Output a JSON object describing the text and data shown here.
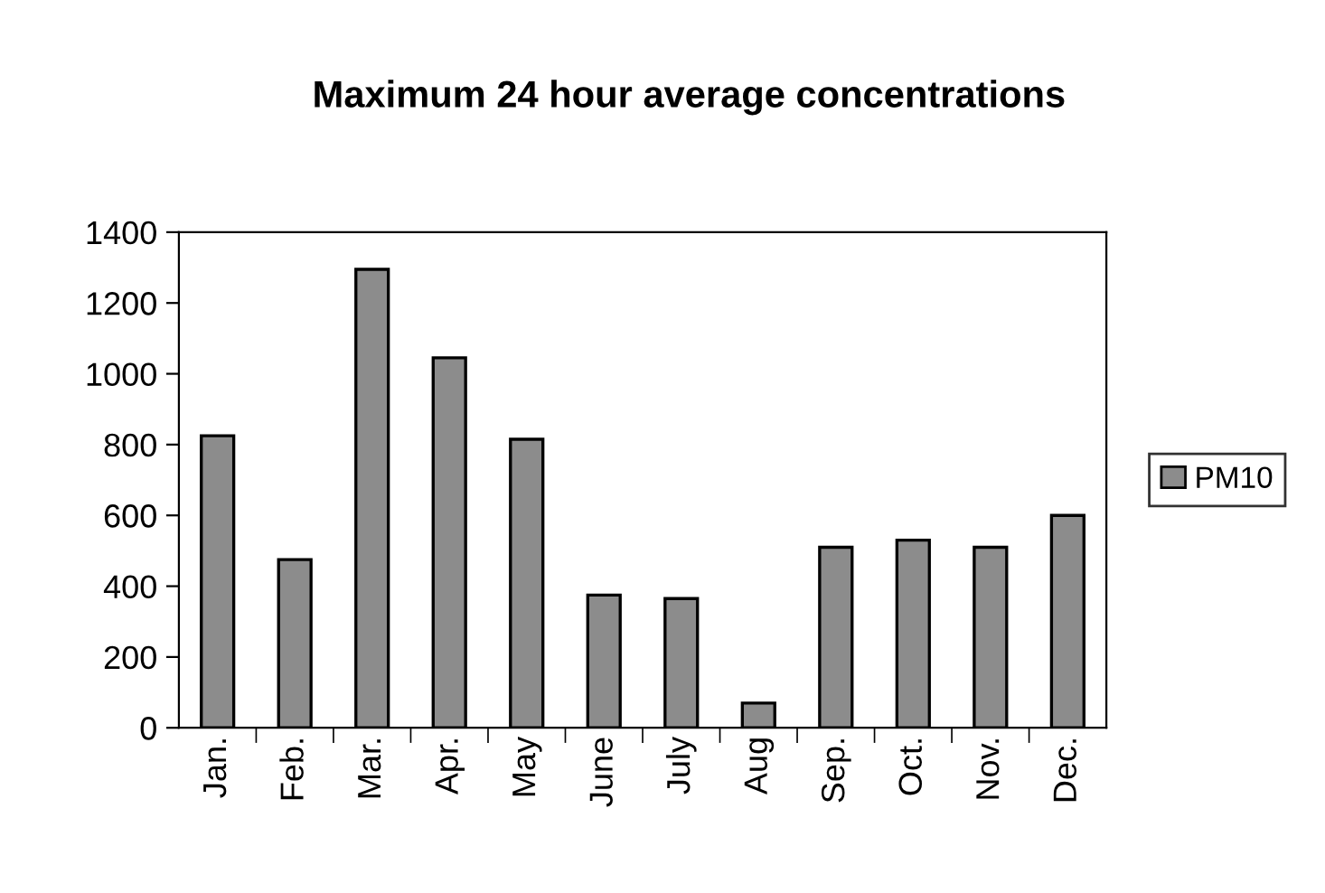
{
  "chart_data": {
    "type": "bar",
    "title": "Maximum 24 hour average concentrations",
    "categories": [
      "Jan.",
      "Feb.",
      "Mar.",
      "Apr.",
      "May",
      "June",
      "July",
      "Aug",
      "Sep.",
      "Oct.",
      "Nov.",
      "Dec."
    ],
    "series": [
      {
        "name": "PM10",
        "color": "#8c8c8c",
        "values": [
          825,
          475,
          1295,
          1045,
          815,
          375,
          365,
          70,
          510,
          530,
          510,
          600
        ]
      }
    ],
    "ylim": [
      0,
      1400
    ],
    "yticks": [
      0,
      200,
      400,
      600,
      800,
      1000,
      1200,
      1400
    ],
    "grid": false,
    "legend": "right"
  }
}
